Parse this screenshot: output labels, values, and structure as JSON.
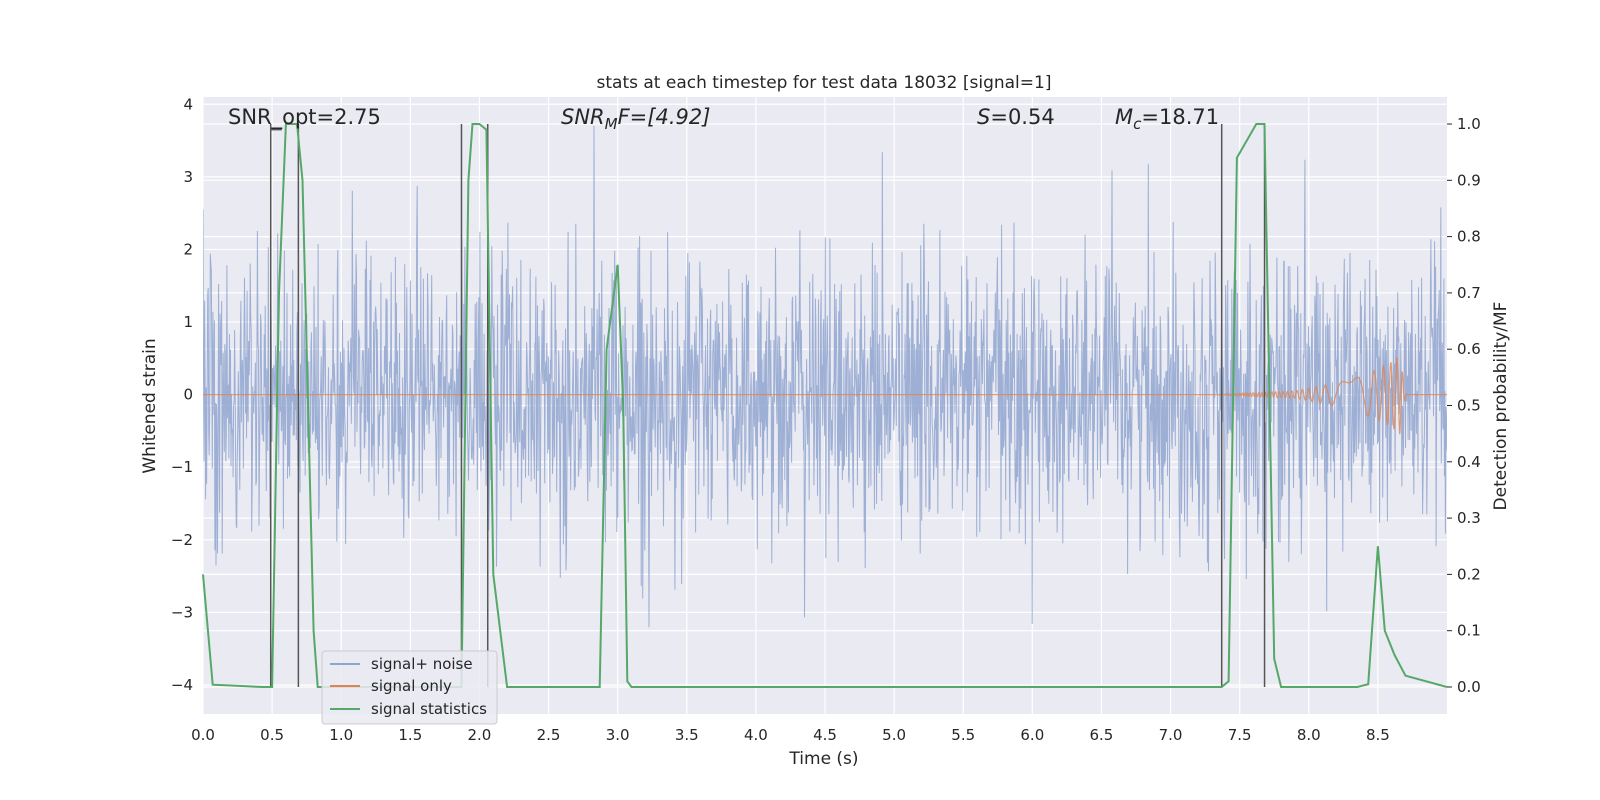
{
  "chart_data": {
    "type": "line",
    "title": "stats at each timestep for test data 18032 [signal=1]",
    "xlabel": "Time (s)",
    "ylabel": "Whitened strain",
    "y2label": "Detection probability/MF",
    "xlim": [
      0.0,
      9.0
    ],
    "ylim": [
      -4.4,
      4.1
    ],
    "y2lim": [
      -0.048,
      1.048
    ],
    "x_ticks": [
      "0.0",
      "0.5",
      "1.0",
      "1.5",
      "2.0",
      "2.5",
      "3.0",
      "3.5",
      "4.0",
      "4.5",
      "5.0",
      "5.5",
      "6.0",
      "6.5",
      "7.0",
      "7.5",
      "8.0",
      "8.5"
    ],
    "y_ticks": [
      "4",
      "3",
      "2",
      "1",
      "0",
      "−1",
      "−2",
      "−3",
      "−4"
    ],
    "y2_ticks": [
      "1.0",
      "0.9",
      "0.8",
      "0.7",
      "0.6",
      "0.5",
      "0.4",
      "0.3",
      "0.2",
      "0.1",
      "0.0"
    ],
    "grid": true,
    "legend": {
      "placement": "lower-left",
      "entries": [
        {
          "label": "signal+ noise",
          "color": "#8fa5cf"
        },
        {
          "label": "signal only",
          "color": "#dd8452"
        },
        {
          "label": "signal statistics",
          "color": "#55a868"
        }
      ]
    },
    "annotations": {
      "snr_opt": "SNR_opt=2.75",
      "snr_mf_base": "SNR",
      "snr_mf_sub": "M",
      "snr_mf_rest": "F=[4.92]",
      "s_base": "S",
      "s_rest": "=0.54",
      "mc_base": "M",
      "mc_sub": "c",
      "mc_rest": "=18.71"
    },
    "series": [
      {
        "name": "signal statistics",
        "color": "#55a868",
        "axis": "right",
        "x": [
          0.0,
          0.07,
          0.43,
          0.5,
          0.55,
          0.6,
          0.68,
          0.72,
          0.8,
          0.83,
          1.87,
          1.92,
          1.95,
          2.0,
          2.05,
          2.1,
          2.2,
          2.87,
          2.92,
          3.0,
          3.04,
          3.07,
          3.1,
          7.37,
          7.42,
          7.48,
          7.62,
          7.68,
          7.75,
          7.8,
          8.35,
          8.43,
          8.5,
          8.55,
          8.62,
          8.7,
          9.0
        ],
        "y": [
          0.2,
          0.004,
          0.0,
          0.0,
          0.7,
          1.0,
          1.0,
          0.9,
          0.1,
          0.0,
          0.0,
          0.9,
          1.0,
          1.0,
          0.99,
          0.2,
          0.0,
          0.0,
          0.6,
          0.75,
          0.5,
          0.01,
          0.0,
          0.0,
          0.01,
          0.94,
          1.0,
          1.0,
          0.05,
          0.0,
          0.0,
          0.005,
          0.25,
          0.1,
          0.057,
          0.02,
          0.0
        ]
      },
      {
        "name": "signal only",
        "color": "#dd8452",
        "axis": "left",
        "x": [
          0.0,
          7.3,
          7.9,
          8.3,
          8.5,
          8.6,
          8.66,
          8.7,
          9.0
        ],
        "y": [
          0.0,
          0.0,
          0.05,
          0.2,
          0.35,
          0.45,
          0.55,
          0.0,
          0.0
        ]
      },
      {
        "name": "signal+ noise",
        "color": "#8fa5cf",
        "axis": "left",
        "description": "dense whitened strain noise, roughly within ±2.5 with spikes to ±3.7"
      }
    ],
    "vertical_markers_x": [
      0.49,
      0.69,
      1.87,
      2.06,
      7.37,
      7.68
    ]
  }
}
